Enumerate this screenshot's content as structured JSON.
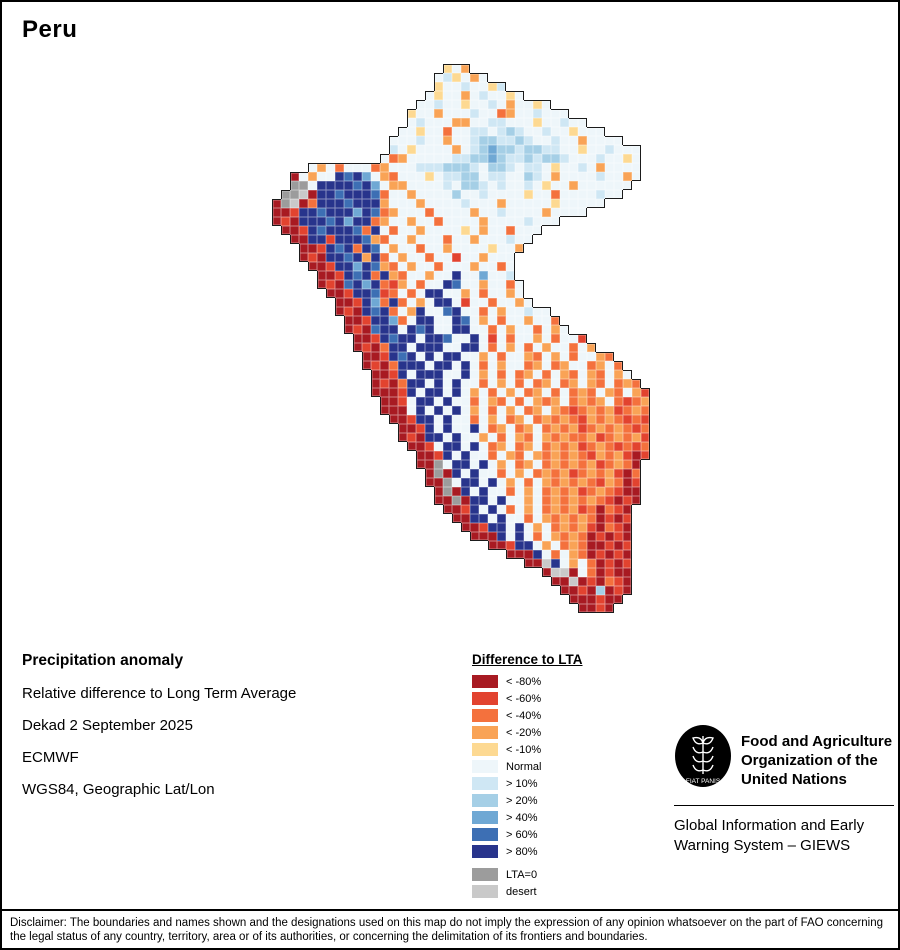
{
  "page": {
    "title": "Peru"
  },
  "map": {
    "cell_size": 9,
    "palette": {
      "A": "#a81a22",
      "B": "#e2432f",
      "C": "#f4713d",
      "D": "#f9a356",
      "E": "#fdd992",
      "N": "#eef6fa",
      "F": "#cfe7f4",
      "G": "#a5cfe6",
      "H": "#6fa8d4",
      "I": "#3d6fb4",
      "J": "#28348c",
      "X": "#9c9c9c",
      "Y": "#c9c9c9"
    },
    "rows": [
      {
        "s": 19,
        "c": "END"
      },
      {
        "s": 18,
        "c": "NFENDN"
      },
      {
        "s": 18,
        "c": "ENNFNNEF"
      },
      {
        "s": 17,
        "c": "NENNDNFNNEN"
      },
      {
        "s": 16,
        "c": "NNFNNENNFNDNNEN"
      },
      {
        "s": 15,
        "c": "ENNDNNNFNNCDNNFNNN"
      },
      {
        "s": 15,
        "c": "NFNNNDDNNFFNNNENNFNN"
      },
      {
        "s": 14,
        "c": "NNENNCNNFFNFGFNNFNNENNN"
      },
      {
        "s": 13,
        "c": "NNNFNNDNNFGGFFGFNNFNNDNNNN"
      },
      {
        "s": 13,
        "c": "FNENNNNDNFGHGGFGGFFNNENNFNNN"
      },
      {
        "s": 12,
        "c": "NCDNNNNNFFGGHGFFGFGGFNNNFNNEN"
      },
      {
        "s": 4,
        "c": "NDNCNNNCDNNNFFFGGGFNGGFNFFNENNFNDNNNN"
      },
      {
        "s": 2,
        "c": "ANDNNJIJHNDCNNNENFFGGNFFNNGFNDNNNNFNNDN"
      },
      {
        "s": 2,
        "c": "XXNJJJJIJHNDDNNNNFNGGFNFNNFNENNDNNNNNN"
      },
      {
        "s": 1,
        "c": "XXYAJJIJJJICNNDNNNNGNNFNNNNENNCNNNNFNN"
      },
      {
        "s": 0,
        "c": "AXYACJJJIJJJDNNNDNNNNFNNNDNNNNNENNNNN"
      },
      {
        "s": 0,
        "c": "AABJJIJJJHJICDNNNCNNNNDNNFNNNNDNNNN"
      },
      {
        "s": 0,
        "c": "ABAJJJIJHJJCDNNDNNCNNNNDNNNNFNNN"
      },
      {
        "s": 1,
        "c": "AABJIJJJICJNCNNDNNNNENDNNCNNN"
      },
      {
        "s": 2,
        "c": "AAJJBJJJIDCNNDNNNCNNDNNNFNN"
      },
      {
        "s": 3,
        "c": "AABJIJCJINDNNCNNDNNNNENND"
      },
      {
        "s": 3,
        "c": "ABAJJIJDJCNDNNCNNBNNDNNN"
      },
      {
        "s": 4,
        "c": "AABJJHJIDCNDNNCNNNDNNCN"
      },
      {
        "s": 5,
        "c": "AABJIJCJDCNNDNNJNNHNNF"
      },
      {
        "s": 5,
        "c": "ABAIJHJCBDNCNNJINNDNNCN"
      },
      {
        "s": 6,
        "c": "AABJJIBCNCNJJNNDNCNNDN"
      },
      {
        "s": 7,
        "c": "AABJHCJCNDNJJNBNNCNNDN"
      },
      {
        "s": 7,
        "c": "ABAJIJCNDJNNIJNNCNDNNFNN"
      },
      {
        "s": 8,
        "c": "AABJJHCNJJNNJINDNCNNDNNC"
      },
      {
        "s": 8,
        "c": "ABAIJJNJIJNNJJNNCNDNNCNDN"
      },
      {
        "s": 9,
        "c": "AABJIJJNJJINNJNBNCNNDNCNNB"
      },
      {
        "s": 9,
        "c": "ABACJJNJJJNNJJNCNDNCNDNNCND"
      },
      {
        "s": 10,
        "c": "AABJIJNJNJJNNDNCNNDCNDNCNNDC"
      },
      {
        "s": 10,
        "c": "ABACJJJNJJNJNCNDNNCDNCDNNCDNC"
      },
      {
        "s": 11,
        "c": "AABJNJJJNNJNDNCNCDNCNDCNDCNDN"
      },
      {
        "s": 11,
        "c": "ABACJJNJNJNNCNDNCNCDNCDNDCNCDC"
      },
      {
        "s": 11,
        "c": "AAABJNJJNJNDNCNDNCDNCNCDCNDCNDB"
      },
      {
        "s": 12,
        "c": "AABNJJNJNNCNDCNCNDCDNCDCDNCBCD"
      },
      {
        "s": 12,
        "c": "AAANJNJNJNDNCNDNCDNDCBCDCDBCDC"
      },
      {
        "s": 13,
        "c": "AABJJNJNNCNDNCDNCDCDCBDCDCBCB"
      },
      {
        "s": 14,
        "c": "AABJNJNNJNCDNCDNCDCDBCDCDCBC"
      },
      {
        "s": 14,
        "c": "ABAJJNJNNDNCNDCNDCDCCDBCDCDB"
      },
      {
        "s": 15,
        "c": "AABNJJNJNCDNCDNCDCDBCDCBCBC"
      },
      {
        "s": 16,
        "c": "AABJNJNNCNDCNDCDCDCBDCDBAB"
      },
      {
        "s": 16,
        "c": "AAXNJJNJNDNCDNCDCDCDBCDCA"
      },
      {
        "s": 17,
        "c": "AXAJNJNNCNDNCDCDBCDCDBAC"
      },
      {
        "s": 17,
        "c": "AAXNJJNJNDNCNDCDCDCBDCAB"
      },
      {
        "s": 18,
        "c": "AXAJNJNNCNDNCDCDBCDCBAA"
      },
      {
        "s": 18,
        "c": "AAXAJJNJNNDNCDCDCDCBABA"
      },
      {
        "s": 19,
        "c": "AABJNJNCNDNCDCDBCACBA"
      },
      {
        "s": 20,
        "c": "AAJJNJNNCNDCDCDCABAB"
      },
      {
        "s": 21,
        "c": "AABJJNJNDNCDCDBACBA"
      },
      {
        "s": 22,
        "c": "AAAJNJNCNDCDCABABA"
      },
      {
        "s": 24,
        "c": "AABJJNDNCDCAABAB"
      },
      {
        "s": 26,
        "c": "AAAJNCNDCABABA"
      },
      {
        "s": 28,
        "c": "AAYJNDNCABAB"
      },
      {
        "s": 30,
        "c": "AYYANCABAA"
      },
      {
        "s": 31,
        "c": "AAYABACBA"
      },
      {
        "s": 32,
        "c": "AABAGABA"
      },
      {
        "s": 33,
        "c": "AAABAA"
      },
      {
        "s": 34,
        "c": "AABA"
      }
    ]
  },
  "info": {
    "heading": "Precipitation anomaly",
    "lines": [
      "Relative difference to Long Term Average",
      "Dekad 2 September 2025",
      "ECMWF",
      "WGS84, Geographic Lat/Lon"
    ]
  },
  "legend": {
    "title": "Difference to LTA",
    "items": [
      {
        "label": "< -80%",
        "color": "#a81a22"
      },
      {
        "label": "< -60%",
        "color": "#e2432f"
      },
      {
        "label": "< -40%",
        "color": "#f4713d"
      },
      {
        "label": "< -20%",
        "color": "#f9a356"
      },
      {
        "label": "< -10%",
        "color": "#fdd992"
      },
      {
        "label": "Normal",
        "color": "#eef6fa"
      },
      {
        "label": "> 10%",
        "color": "#cfe7f4"
      },
      {
        "label": "> 20%",
        "color": "#a5cfe6"
      },
      {
        "label": "> 40%",
        "color": "#6fa8d4"
      },
      {
        "label": "> 60%",
        "color": "#3d6fb4"
      },
      {
        "label": "> 80%",
        "color": "#28348c"
      }
    ],
    "extra_items": [
      {
        "label": "LTA=0",
        "color": "#9c9c9c"
      },
      {
        "label": "desert",
        "color": "#c9c9c9"
      }
    ]
  },
  "footer": {
    "logo_text": "FAO",
    "logo_motto": "FIAT PANIS",
    "fao_name_lines": [
      "Food and Agriculture",
      "Organization of the",
      "United Nations"
    ],
    "giews_lines": [
      "Global Information and Early",
      "Warning System – GIEWS"
    ]
  },
  "disclaimer": "Disclaimer: The boundaries and names shown and the designations used on this map do not imply the expression of any opinion whatsoever on the part of FAO concerning the legal status of any country, territory, area or of its authorities, or concerning the delimitation of its frontiers and boundaries."
}
